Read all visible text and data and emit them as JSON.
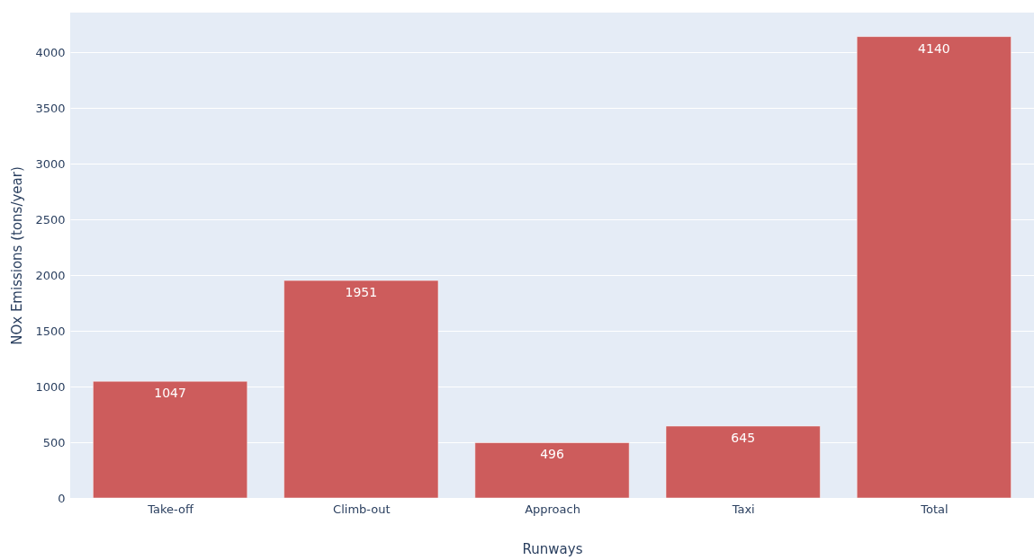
{
  "chart_data": {
    "type": "bar",
    "xlabel": "Runways",
    "ylabel": "NOx Emissions (tons/year)",
    "categories": [
      "Take-off",
      "Climb-out",
      "Approach",
      "Taxi",
      "Total"
    ],
    "values": [
      1047,
      1951,
      496,
      645,
      4140
    ],
    "color": "#cd5c5c",
    "ylim": [
      0,
      4355
    ],
    "yticks": [
      0,
      500,
      1000,
      1500,
      2000,
      2500,
      3000,
      3500,
      4000
    ],
    "grid": "y",
    "data_labels": true
  }
}
